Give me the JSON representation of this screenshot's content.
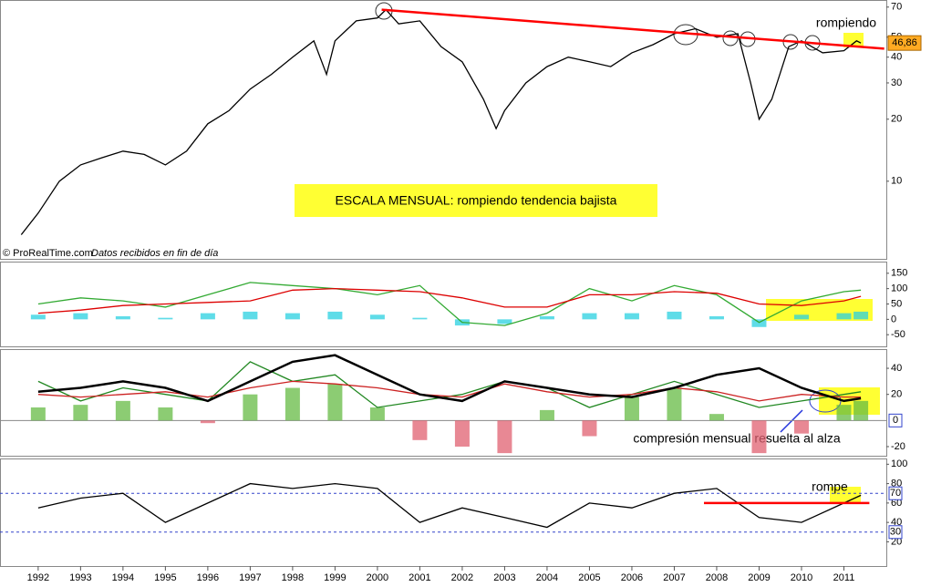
{
  "chart_data": [
    {
      "type": "line",
      "log": true,
      "ylim": [
        4.2,
        75
      ],
      "yticks": [
        10,
        20,
        30,
        40,
        50,
        70
      ],
      "x": [
        1991.6,
        1992.0,
        1992.5,
        1993.0,
        1993.5,
        1994.0,
        1994.5,
        1995.0,
        1995.5,
        1996.0,
        1996.5,
        1997.0,
        1997.5,
        1998.0,
        1998.5,
        1998.8,
        1999.0,
        1999.5,
        2000.0,
        2000.2,
        2000.5,
        2001.0,
        2001.5,
        2002.0,
        2002.5,
        2002.8,
        2003.0,
        2003.5,
        2004.0,
        2004.5,
        2005.0,
        2005.5,
        2006.0,
        2006.5,
        2007.0,
        2007.5,
        2008.0,
        2008.5,
        2008.8,
        2009.0,
        2009.3,
        2009.7,
        2010.0,
        2010.5,
        2011.0,
        2011.3,
        2011.4
      ],
      "series": [
        {
          "color": "#000000",
          "values": [
            5.5,
            7,
            10,
            12,
            13,
            14,
            13.5,
            12,
            14,
            19,
            22,
            28,
            33,
            40,
            48,
            33,
            48,
            60,
            62,
            68,
            58,
            60,
            45,
            38,
            25,
            18,
            22,
            30,
            36,
            40,
            38,
            36,
            42,
            46,
            52,
            55,
            50,
            52,
            30,
            20,
            25,
            45,
            48,
            42,
            43,
            48,
            46.86
          ]
        }
      ],
      "trendline": {
        "color": "#ff0000",
        "x": [
          2000.1,
          2011.95
        ],
        "values": [
          68,
          44
        ]
      },
      "last_value_label": "46,86",
      "annotations": [
        "rompiendo",
        "ESCALA MENSUAL: rompiendo tendencia bajista"
      ],
      "source": "© ProRealTime.com",
      "source_note": "Datos recibidos en fin de día"
    },
    {
      "type": "line",
      "ylim": [
        -88,
        185
      ],
      "yticks": [
        -50,
        0,
        50,
        100,
        150
      ],
      "x": [
        1992,
        1993,
        1994,
        1995,
        1996,
        1997,
        1998,
        1999,
        2000,
        2001,
        2002,
        2003,
        2004,
        2005,
        2006,
        2007,
        2008,
        2009,
        2010,
        2011,
        2011.4
      ],
      "series": [
        {
          "color": "#2ad0e0",
          "style": "bar",
          "values": [
            15,
            20,
            10,
            5,
            20,
            25,
            20,
            25,
            15,
            5,
            -20,
            -15,
            10,
            20,
            20,
            25,
            10,
            -25,
            15,
            20,
            25
          ]
        },
        {
          "color": "#33aa33",
          "values": [
            50,
            70,
            60,
            40,
            80,
            120,
            110,
            100,
            80,
            110,
            -10,
            -20,
            20,
            100,
            60,
            110,
            80,
            -10,
            60,
            90,
            95
          ]
        },
        {
          "color": "#dd0000",
          "values": [
            20,
            30,
            45,
            50,
            55,
            60,
            95,
            100,
            95,
            90,
            70,
            40,
            40,
            80,
            80,
            90,
            85,
            50,
            45,
            60,
            75
          ]
        }
      ]
    },
    {
      "type": "line",
      "ylim": [
        -27,
        54
      ],
      "yticks": [
        -20,
        20,
        40
      ],
      "levels": [
        0
      ],
      "x": [
        1992,
        1993,
        1994,
        1995,
        1996,
        1997,
        1998,
        1999,
        2000,
        2001,
        2002,
        2003,
        2004,
        2005,
        2006,
        2007,
        2008,
        2009,
        2010,
        2011,
        2011.4
      ],
      "series": [
        {
          "color": "#66bb44",
          "style": "bar",
          "values": [
            10,
            12,
            15,
            10,
            -2,
            20,
            25,
            28,
            10,
            -15,
            -20,
            -25,
            8,
            -12,
            18,
            25,
            5,
            -25,
            -10,
            12,
            15
          ]
        },
        {
          "color": "#228822",
          "values": [
            30,
            15,
            25,
            20,
            15,
            45,
            30,
            35,
            10,
            15,
            20,
            30,
            25,
            10,
            20,
            30,
            20,
            10,
            15,
            20,
            22
          ]
        },
        {
          "color": "#cc2222",
          "values": [
            20,
            18,
            20,
            22,
            18,
            25,
            30,
            28,
            25,
            20,
            18,
            28,
            22,
            18,
            20,
            25,
            22,
            15,
            20,
            18,
            18
          ]
        },
        {
          "color": "#000000",
          "values": [
            22,
            25,
            30,
            25,
            15,
            30,
            45,
            50,
            35,
            20,
            15,
            30,
            25,
            20,
            18,
            25,
            35,
            40,
            25,
            15,
            17
          ]
        }
      ],
      "annotations": [
        "compresión mensual resuelta al alza"
      ]
    },
    {
      "type": "line",
      "ylim": [
        -5,
        105
      ],
      "yticks": [
        20,
        40,
        60,
        80,
        100
      ],
      "levels": [
        70,
        30
      ],
      "xlim": [
        1991.1,
        2012.0
      ],
      "xticks": [
        1992,
        1993,
        1994,
        1995,
        1996,
        1997,
        1998,
        1999,
        2000,
        2001,
        2002,
        2003,
        2004,
        2005,
        2006,
        2007,
        2008,
        2009,
        2010,
        2011
      ],
      "x": [
        1992,
        1993,
        1994,
        1995,
        1996,
        1997,
        1998,
        1999,
        2000,
        2001,
        2002,
        2003,
        2004,
        2005,
        2006,
        2007,
        2008,
        2009,
        2010,
        2011,
        2011.4
      ],
      "series": [
        {
          "color": "#000000",
          "values": [
            55,
            65,
            70,
            40,
            60,
            80,
            75,
            80,
            75,
            40,
            55,
            45,
            35,
            60,
            55,
            70,
            75,
            45,
            40,
            60,
            68
          ]
        }
      ],
      "trendline": {
        "color": "#ff0000",
        "x": [
          2007.7,
          2011.6
        ],
        "values": [
          60,
          60
        ]
      },
      "annotations": [
        "rompe"
      ]
    }
  ]
}
